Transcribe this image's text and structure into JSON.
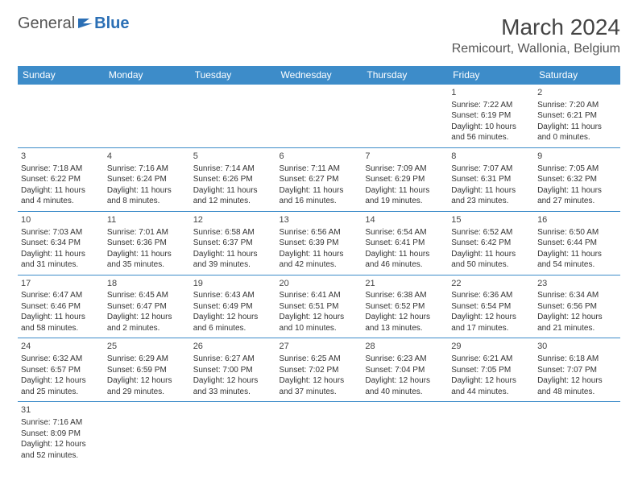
{
  "logo": {
    "text1": "General",
    "text2": "Blue"
  },
  "title": "March 2024",
  "location": "Remicourt, Wallonia, Belgium",
  "colors": {
    "header_bg": "#3d8cc9",
    "header_text": "#ffffff",
    "border": "#3d8cc9",
    "logo_blue": "#2b6fb5"
  },
  "weekdays": [
    "Sunday",
    "Monday",
    "Tuesday",
    "Wednesday",
    "Thursday",
    "Friday",
    "Saturday"
  ],
  "weeks": [
    [
      null,
      null,
      null,
      null,
      null,
      {
        "n": "1",
        "rise": "7:22 AM",
        "set": "6:19 PM",
        "dl": "10 hours and 56 minutes."
      },
      {
        "n": "2",
        "rise": "7:20 AM",
        "set": "6:21 PM",
        "dl": "11 hours and 0 minutes."
      }
    ],
    [
      {
        "n": "3",
        "rise": "7:18 AM",
        "set": "6:22 PM",
        "dl": "11 hours and 4 minutes."
      },
      {
        "n": "4",
        "rise": "7:16 AM",
        "set": "6:24 PM",
        "dl": "11 hours and 8 minutes."
      },
      {
        "n": "5",
        "rise": "7:14 AM",
        "set": "6:26 PM",
        "dl": "11 hours and 12 minutes."
      },
      {
        "n": "6",
        "rise": "7:11 AM",
        "set": "6:27 PM",
        "dl": "11 hours and 16 minutes."
      },
      {
        "n": "7",
        "rise": "7:09 AM",
        "set": "6:29 PM",
        "dl": "11 hours and 19 minutes."
      },
      {
        "n": "8",
        "rise": "7:07 AM",
        "set": "6:31 PM",
        "dl": "11 hours and 23 minutes."
      },
      {
        "n": "9",
        "rise": "7:05 AM",
        "set": "6:32 PM",
        "dl": "11 hours and 27 minutes."
      }
    ],
    [
      {
        "n": "10",
        "rise": "7:03 AM",
        "set": "6:34 PM",
        "dl": "11 hours and 31 minutes."
      },
      {
        "n": "11",
        "rise": "7:01 AM",
        "set": "6:36 PM",
        "dl": "11 hours and 35 minutes."
      },
      {
        "n": "12",
        "rise": "6:58 AM",
        "set": "6:37 PM",
        "dl": "11 hours and 39 minutes."
      },
      {
        "n": "13",
        "rise": "6:56 AM",
        "set": "6:39 PM",
        "dl": "11 hours and 42 minutes."
      },
      {
        "n": "14",
        "rise": "6:54 AM",
        "set": "6:41 PM",
        "dl": "11 hours and 46 minutes."
      },
      {
        "n": "15",
        "rise": "6:52 AM",
        "set": "6:42 PM",
        "dl": "11 hours and 50 minutes."
      },
      {
        "n": "16",
        "rise": "6:50 AM",
        "set": "6:44 PM",
        "dl": "11 hours and 54 minutes."
      }
    ],
    [
      {
        "n": "17",
        "rise": "6:47 AM",
        "set": "6:46 PM",
        "dl": "11 hours and 58 minutes."
      },
      {
        "n": "18",
        "rise": "6:45 AM",
        "set": "6:47 PM",
        "dl": "12 hours and 2 minutes."
      },
      {
        "n": "19",
        "rise": "6:43 AM",
        "set": "6:49 PM",
        "dl": "12 hours and 6 minutes."
      },
      {
        "n": "20",
        "rise": "6:41 AM",
        "set": "6:51 PM",
        "dl": "12 hours and 10 minutes."
      },
      {
        "n": "21",
        "rise": "6:38 AM",
        "set": "6:52 PM",
        "dl": "12 hours and 13 minutes."
      },
      {
        "n": "22",
        "rise": "6:36 AM",
        "set": "6:54 PM",
        "dl": "12 hours and 17 minutes."
      },
      {
        "n": "23",
        "rise": "6:34 AM",
        "set": "6:56 PM",
        "dl": "12 hours and 21 minutes."
      }
    ],
    [
      {
        "n": "24",
        "rise": "6:32 AM",
        "set": "6:57 PM",
        "dl": "12 hours and 25 minutes."
      },
      {
        "n": "25",
        "rise": "6:29 AM",
        "set": "6:59 PM",
        "dl": "12 hours and 29 minutes."
      },
      {
        "n": "26",
        "rise": "6:27 AM",
        "set": "7:00 PM",
        "dl": "12 hours and 33 minutes."
      },
      {
        "n": "27",
        "rise": "6:25 AM",
        "set": "7:02 PM",
        "dl": "12 hours and 37 minutes."
      },
      {
        "n": "28",
        "rise": "6:23 AM",
        "set": "7:04 PM",
        "dl": "12 hours and 40 minutes."
      },
      {
        "n": "29",
        "rise": "6:21 AM",
        "set": "7:05 PM",
        "dl": "12 hours and 44 minutes."
      },
      {
        "n": "30",
        "rise": "6:18 AM",
        "set": "7:07 PM",
        "dl": "12 hours and 48 minutes."
      }
    ],
    [
      {
        "n": "31",
        "rise": "7:16 AM",
        "set": "8:09 PM",
        "dl": "12 hours and 52 minutes."
      },
      null,
      null,
      null,
      null,
      null,
      null
    ]
  ],
  "labels": {
    "sunrise": "Sunrise: ",
    "sunset": "Sunset: ",
    "daylight": "Daylight: "
  }
}
